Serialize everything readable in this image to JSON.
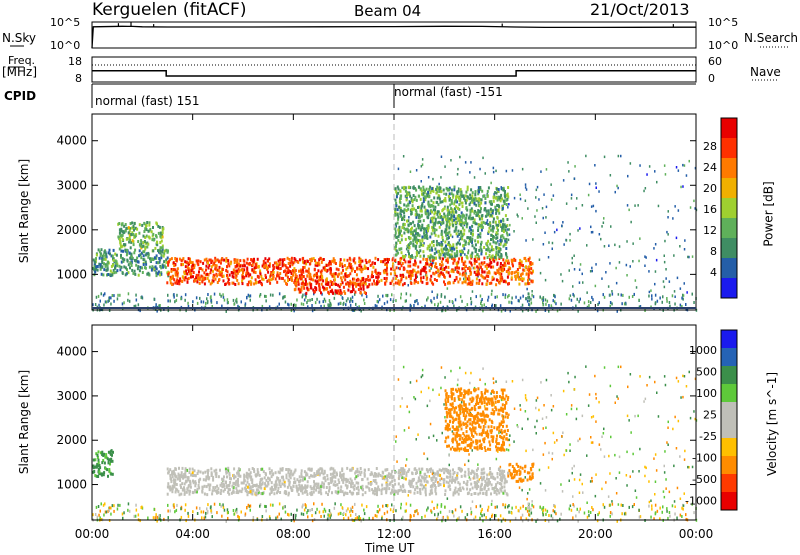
{
  "header": {
    "radar": "Kerguelen (fitACF)",
    "beam": "Beam 04",
    "date": "21/Oct/2013"
  },
  "left_labels": {
    "nsky": "N.Sky",
    "freq_line1": "Freq.",
    "freq_line2": "[MHz]",
    "cpid": "CPID"
  },
  "right_labels": {
    "nsearch": "N.Search",
    "nave": "Nave"
  },
  "noise_panel": {
    "left_ticks": [
      "10^5",
      "10^0"
    ],
    "right_ticks": [
      "10^5",
      "10^0"
    ]
  },
  "freq_panel": {
    "left_ticks": [
      "18",
      "8"
    ],
    "right_ticks": [
      "60",
      "0"
    ]
  },
  "cpid_panel": {
    "segments": [
      {
        "start_hour": 0,
        "label": "normal (fast) 151"
      },
      {
        "start_hour": 12,
        "label": "normal (fast) -151"
      }
    ]
  },
  "x_axis": {
    "ticks": [
      "00:00",
      "04:00",
      "08:00",
      "12:00",
      "16:00",
      "20:00",
      "00:00"
    ],
    "tick_hours": [
      0,
      4,
      8,
      12,
      16,
      20,
      24
    ],
    "label": "Time UT"
  },
  "colors": {
    "power": [
      "#1a1aee",
      "#245ea8",
      "#3f8d63",
      "#5fb05a",
      "#9fd030",
      "#f0b000",
      "#ff7a00",
      "#ff3000",
      "#e80000"
    ],
    "velocity": [
      "#e80000",
      "#ff3a00",
      "#ff8c00",
      "#ffc000",
      "#c0c0b8",
      "#bfbfb8",
      "#5ec93a",
      "#3b8f4a",
      "#2563b5",
      "#1a1aee"
    ],
    "ground": "#c0c0b8"
  },
  "chart_data": [
    {
      "type": "line",
      "name": "N.Sky noise",
      "x_range_hours": [
        0,
        24
      ],
      "y_scale": "log",
      "ylim": [
        1,
        100000
      ],
      "typical_level": 20000,
      "x": [
        0,
        0.05,
        1.2,
        1.6,
        2.0,
        3,
        6,
        9,
        12,
        14,
        15.5,
        16.8,
        18,
        20,
        23.5,
        24
      ],
      "values": [
        1,
        12000,
        15000,
        14000,
        12000,
        11000,
        11000,
        12000,
        13000,
        15000,
        14500,
        11000,
        9000,
        9000,
        10000,
        10000
      ]
    },
    {
      "type": "line",
      "name": "Frequency",
      "ylim": [
        8,
        18
      ],
      "x": [
        0,
        2.95,
        2.95,
        16.85,
        16.85,
        24
      ],
      "values": [
        12.5,
        12.5,
        10.4,
        10.4,
        12.5,
        12.5
      ]
    },
    {
      "type": "heatmap",
      "title": "Power",
      "ylabel": "Slant Range [km]",
      "xlabel": "Time UT",
      "x_range_hours": [
        0,
        24
      ],
      "ylim": [
        200,
        4600
      ],
      "y_ticks": [
        1000,
        2000,
        3000,
        4000
      ],
      "colorbar": {
        "label": "Power [dB]",
        "ticks": [
          "4",
          "8",
          "12",
          "16",
          "20",
          "24",
          "28"
        ],
        "range": [
          0,
          30
        ]
      },
      "echo_regions": [
        {
          "hours": [
            0,
            3
          ],
          "range_km": [
            1000,
            1600
          ],
          "level_db": 9
        },
        {
          "hours": [
            1,
            2.8
          ],
          "range_km": [
            1600,
            2200
          ],
          "level_db": 12
        },
        {
          "hours": [
            2.95,
            16.5
          ],
          "range_km": [
            800,
            1400
          ],
          "level_db": 24
        },
        {
          "hours": [
            8,
            11
          ],
          "range_km": [
            600,
            850
          ],
          "level_db": 26
        },
        {
          "hours": [
            12,
            16.5
          ],
          "range_km": [
            1400,
            3000
          ],
          "level_db": 11
        },
        {
          "hours": [
            16.5,
            17.5
          ],
          "range_km": [
            800,
            1400
          ],
          "level_db": 22
        }
      ]
    },
    {
      "type": "heatmap",
      "title": "Velocity",
      "ylabel": "Slant Range [km]",
      "xlabel": "Time UT",
      "x_range_hours": [
        0,
        24
      ],
      "ylim": [
        200,
        4600
      ],
      "y_ticks": [
        1000,
        2000,
        3000,
        4000
      ],
      "colorbar": {
        "label": "Velocity [m s^-1]",
        "ticks": [
          "1000",
          "500",
          "100",
          "25",
          "-25",
          "-100",
          "-500",
          "-1000"
        ]
      },
      "echo_regions": [
        {
          "hours": [
            0,
            0.8
          ],
          "range_km": [
            1200,
            1800
          ],
          "velocity": 150
        },
        {
          "hours": [
            2.95,
            16.5
          ],
          "range_km": [
            800,
            1400
          ],
          "velocity": 0
        },
        {
          "hours": [
            14,
            16.5
          ],
          "range_km": [
            1800,
            3200
          ],
          "velocity": -300
        },
        {
          "hours": [
            16.5,
            17.5
          ],
          "range_km": [
            1100,
            1500
          ],
          "velocity": -200
        }
      ]
    }
  ]
}
